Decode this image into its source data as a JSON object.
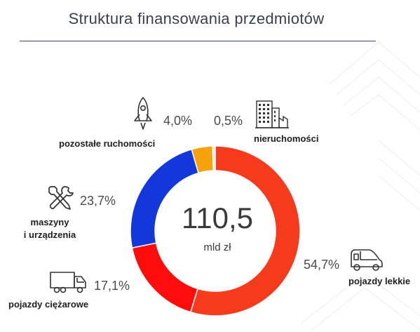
{
  "title": "Struktura finansowania przedmiotów",
  "center": {
    "value": "110,5",
    "unit": "mld zł"
  },
  "icons": {
    "rocket": "rocket-icon",
    "building": "building-icon",
    "tools": "tools-icon",
    "truck": "truck-icon",
    "car": "car-icon"
  },
  "chart_data": {
    "type": "pie",
    "style": "donut",
    "title": "Struktura finansowania przedmiotów",
    "total": 110.5,
    "total_unit": "mld zł",
    "slices": [
      {
        "name": "pojazdy lekkie",
        "value": 54.7,
        "label": "54,7%",
        "color": "#f53b1c"
      },
      {
        "name": "pojazdy ciężarowe",
        "value": 17.1,
        "label": "17,1%",
        "color": "#ff0d0d"
      },
      {
        "name": "maszyny i urządzenia",
        "label_lines": [
          "maszyny",
          "i urządzenia"
        ],
        "value": 23.7,
        "label": "23,7%",
        "color": "#1238dc"
      },
      {
        "name": "pozostałe ruchomości",
        "value": 4.0,
        "label": "4,0%",
        "color": "#f7a10c"
      },
      {
        "name": "nieruchomości",
        "value": 0.5,
        "label": "0,5%",
        "color": "#e9e9e9"
      }
    ]
  }
}
